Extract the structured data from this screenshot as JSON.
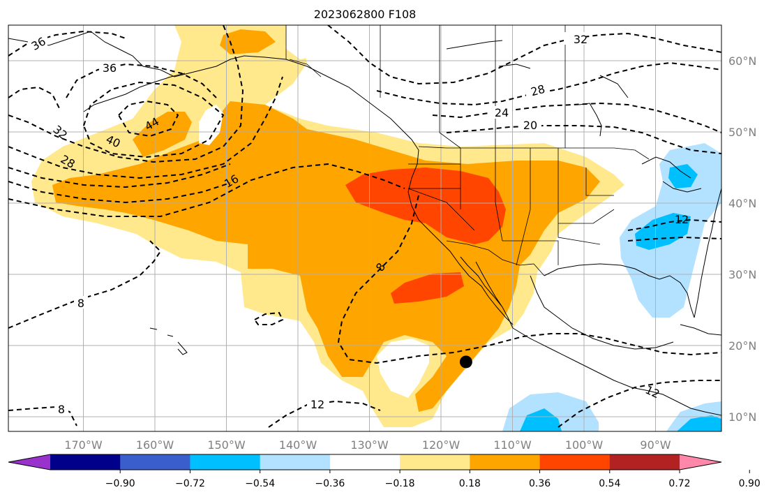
{
  "title": "2023062800 F108",
  "colors": {
    "white": "#ffffff",
    "yellow": "#ffe98c",
    "orange": "#ffa500",
    "redorange": "#ff4500",
    "lightblue": "#b2e2ff",
    "cyan": "#00bfff"
  },
  "lon_labels": [
    "170°W",
    "160°W",
    "150°W",
    "140°W",
    "130°W",
    "120°W",
    "110°W",
    "100°W",
    "90°W"
  ],
  "lat_labels": [
    "60°N",
    "50°N",
    "40°N",
    "30°N",
    "20°N",
    "10°N"
  ],
  "contour_labels": [
    "36",
    "36",
    "32",
    "28",
    "44",
    "40",
    "32",
    "28",
    "24",
    "20",
    "16",
    "12",
    "8",
    "8",
    "12",
    "8",
    "12"
  ],
  "colorbar": {
    "colors": [
      "#9932cc",
      "#00008b",
      "#3a5fcd",
      "#00bfff",
      "#b2e2ff",
      "#ffffff",
      "#ffe98c",
      "#ffa500",
      "#ff4500",
      "#b22222",
      "#ff88aa"
    ],
    "tick_labels": [
      "−0.90",
      "−0.72",
      "−0.54",
      "−0.36",
      "−0.18",
      "0.18",
      "0.36",
      "0.54",
      "0.72",
      "0.90"
    ]
  },
  "marker": {
    "lon": -116.5,
    "lat": 17.7
  }
}
